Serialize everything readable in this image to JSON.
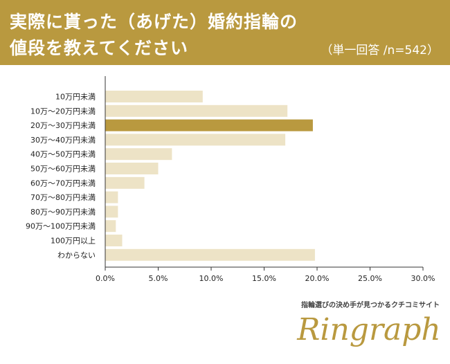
{
  "header": {
    "title_line1": "実際に貰った（あげた）婚約指輪の",
    "title_line2": "値段を教えてください",
    "subtitle": "（単一回答 /n=542）"
  },
  "colors": {
    "header_bg": "#b9993f",
    "bar_default": "#ede3c6",
    "bar_highlight": "#b9993f",
    "axis": "#333333"
  },
  "chart_data": {
    "type": "bar",
    "orientation": "horizontal",
    "categories": [
      "10万円未満",
      "10万～20万円未満",
      "20万～30万円未満",
      "30万～40万円未満",
      "40万～50万円未満",
      "50万～60万円未満",
      "60万～70万円未満",
      "70万～80万円未満",
      "80万～90万円未満",
      "90万～100万円未満",
      "100万円以上",
      "わからない"
    ],
    "values": [
      9.2,
      17.2,
      19.6,
      17.0,
      6.3,
      5.0,
      3.7,
      1.2,
      1.2,
      1.0,
      1.6,
      19.8
    ],
    "highlight_index": 2,
    "xlim": [
      0,
      30
    ],
    "xticks": [
      "0.0%",
      "5.0%",
      "10.0%",
      "15.0%",
      "20.0%",
      "25.0%",
      "30.0%"
    ],
    "grid": false
  },
  "brand": {
    "tagline": "指輪選びの決め手が見つかるクチコミサイト",
    "logo_text": "Ringraph"
  }
}
